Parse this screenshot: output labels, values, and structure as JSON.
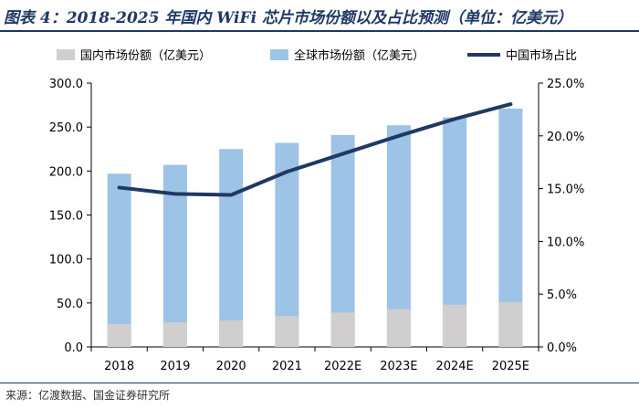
{
  "header": {
    "title": "图表 4：2018-2025 年国内 WiFi 芯片市场份额以及占比预测（单位：亿美元）"
  },
  "footer": {
    "source": "来源：亿渡数据、国金证券研究所"
  },
  "chart_data": {
    "type": "bar",
    "categories": [
      "2018",
      "2019",
      "2020",
      "2021",
      "2022E",
      "2023E",
      "2024E",
      "2025E"
    ],
    "series": [
      {
        "name": "国内市场份额（亿美元）",
        "type": "bar",
        "axis": "left",
        "color": "#d0cece",
        "values": [
          26,
          28,
          30,
          35,
          39,
          43,
          48,
          51
        ]
      },
      {
        "name": "全球市场份额（亿美元）",
        "type": "bar",
        "axis": "left",
        "color": "#9dc3e6",
        "values": [
          197,
          207,
          225,
          232,
          241,
          252,
          261,
          271
        ]
      },
      {
        "name": "中国市场占比",
        "type": "line",
        "axis": "right",
        "color": "#203864",
        "values": [
          15.1,
          14.5,
          14.4,
          16.6,
          18.3,
          20.0,
          21.6,
          23.0
        ]
      }
    ],
    "left_axis": {
      "ylim": [
        0,
        300
      ],
      "ticks": [
        "0.0",
        "50.0",
        "100.0",
        "150.0",
        "200.0",
        "250.0",
        "300.0"
      ]
    },
    "right_axis": {
      "ylim": [
        0,
        25
      ],
      "ticks": [
        "0.0%",
        "5.0%",
        "10.0%",
        "15.0%",
        "20.0%",
        "25.0%"
      ]
    },
    "legend": [
      "国内市场份额（亿美元）",
      "全球市场份额（亿美元）",
      "中国市场占比"
    ],
    "legend_position": "top",
    "grid": false
  }
}
